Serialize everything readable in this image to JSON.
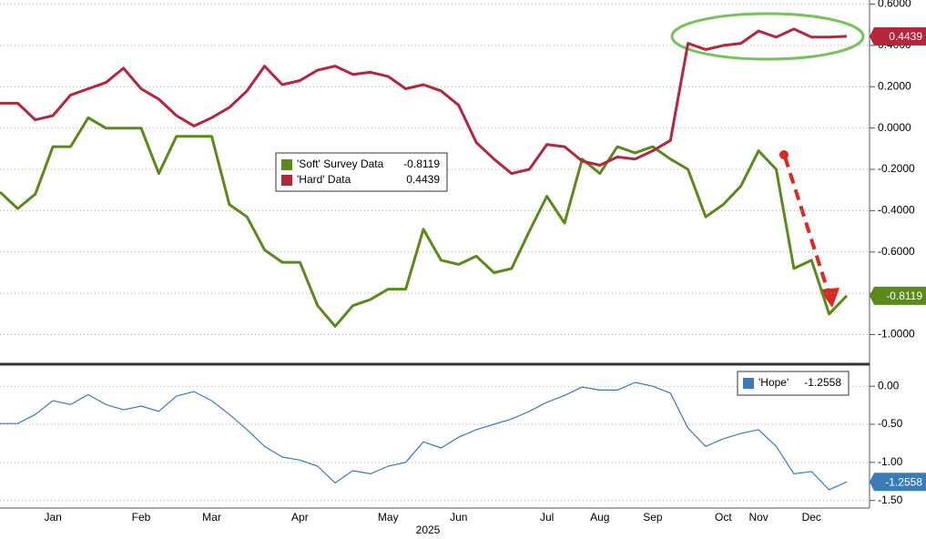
{
  "chart_data": [
    {
      "type": "line",
      "ylim": [
        -1.13,
        0.62
      ],
      "yticks": [
        {
          "value": 0.6,
          "label": "0.6000"
        },
        {
          "value": 0.4,
          "label": "0.4000"
        },
        {
          "value": 0.2,
          "label": "0.2000"
        },
        {
          "value": 0,
          "label": "0.0000"
        },
        {
          "value": -0.2,
          "label": "-0.2000"
        },
        {
          "value": -0.4,
          "label": "-0.4000"
        },
        {
          "value": -0.6,
          "label": "-0.6000"
        },
        {
          "value": -0.8,
          "label": "-0.8000"
        },
        {
          "value": -1.0,
          "label": "-1.0000"
        }
      ],
      "grid": true,
      "series": [
        {
          "name": "'Soft' Survey Data",
          "color": "#5b8a1b",
          "values": [
            -0.31,
            -0.39,
            -0.32,
            -0.09,
            -0.09,
            0.05,
            0.0,
            0.0,
            0.0,
            -0.22,
            -0.04,
            -0.04,
            -0.04,
            -0.37,
            -0.43,
            -0.59,
            -0.65,
            -0.65,
            -0.86,
            -0.96,
            -0.86,
            -0.83,
            -0.78,
            -0.78,
            -0.49,
            -0.64,
            -0.66,
            -0.62,
            -0.7,
            -0.68,
            -0.5,
            -0.33,
            -0.46,
            -0.15,
            -0.22,
            -0.09,
            -0.12,
            -0.09,
            -0.15,
            -0.2,
            -0.43,
            -0.37,
            -0.28,
            -0.11,
            -0.2,
            -0.68,
            -0.64,
            -0.9,
            -0.8119
          ]
        },
        {
          "name": "'Hard' Data",
          "color": "#b3263c",
          "values": [
            0.12,
            0.12,
            0.04,
            0.06,
            0.16,
            0.19,
            0.22,
            0.29,
            0.19,
            0.14,
            0.06,
            0.01,
            0.05,
            0.1,
            0.18,
            0.3,
            0.21,
            0.23,
            0.28,
            0.3,
            0.26,
            0.27,
            0.25,
            0.19,
            0.21,
            0.18,
            0.11,
            -0.07,
            -0.15,
            -0.22,
            -0.2,
            -0.08,
            -0.09,
            -0.16,
            -0.18,
            -0.14,
            -0.15,
            -0.11,
            -0.06,
            0.41,
            0.38,
            0.4,
            0.41,
            0.47,
            0.44,
            0.48,
            0.44,
            0.44,
            0.4439
          ]
        }
      ]
    },
    {
      "type": "line",
      "xlabel": "2025",
      "categories": [
        null,
        null,
        null,
        "Jan",
        null,
        null,
        null,
        null,
        "Feb",
        null,
        null,
        null,
        "Mar",
        null,
        null,
        null,
        null,
        "Apr",
        null,
        null,
        null,
        null,
        "May",
        null,
        null,
        null,
        "Jun",
        null,
        null,
        null,
        null,
        "Jul",
        null,
        null,
        "Aug",
        null,
        null,
        "Sep",
        null,
        null,
        null,
        "Oct",
        null,
        "Nov",
        null,
        null,
        "Dec",
        null,
        null
      ],
      "ylim": [
        -1.6,
        0.23
      ],
      "yticks": [
        {
          "value": 0,
          "label": "0.00"
        },
        {
          "value": -0.5,
          "label": "-0.50"
        },
        {
          "value": -1.0,
          "label": "-1.00"
        },
        {
          "value": -1.5,
          "label": "-1.50"
        }
      ],
      "grid": true,
      "series": [
        {
          "name": "'Hope'",
          "color": "#3b7bb8",
          "values": [
            -0.49,
            -0.49,
            -0.37,
            -0.19,
            -0.24,
            -0.11,
            -0.24,
            -0.31,
            -0.26,
            -0.33,
            -0.13,
            -0.07,
            -0.19,
            -0.37,
            -0.57,
            -0.79,
            -0.93,
            -0.97,
            -1.05,
            -1.27,
            -1.11,
            -1.15,
            -1.05,
            -1.0,
            -0.73,
            -0.81,
            -0.67,
            -0.57,
            -0.5,
            -0.43,
            -0.33,
            -0.21,
            -0.12,
            -0.01,
            -0.05,
            -0.05,
            0.05,
            0.0,
            -0.09,
            -0.55,
            -0.79,
            -0.69,
            -0.62,
            -0.57,
            -0.79,
            -1.15,
            -1.12,
            -1.36,
            -1.2558
          ]
        }
      ]
    }
  ]
}
